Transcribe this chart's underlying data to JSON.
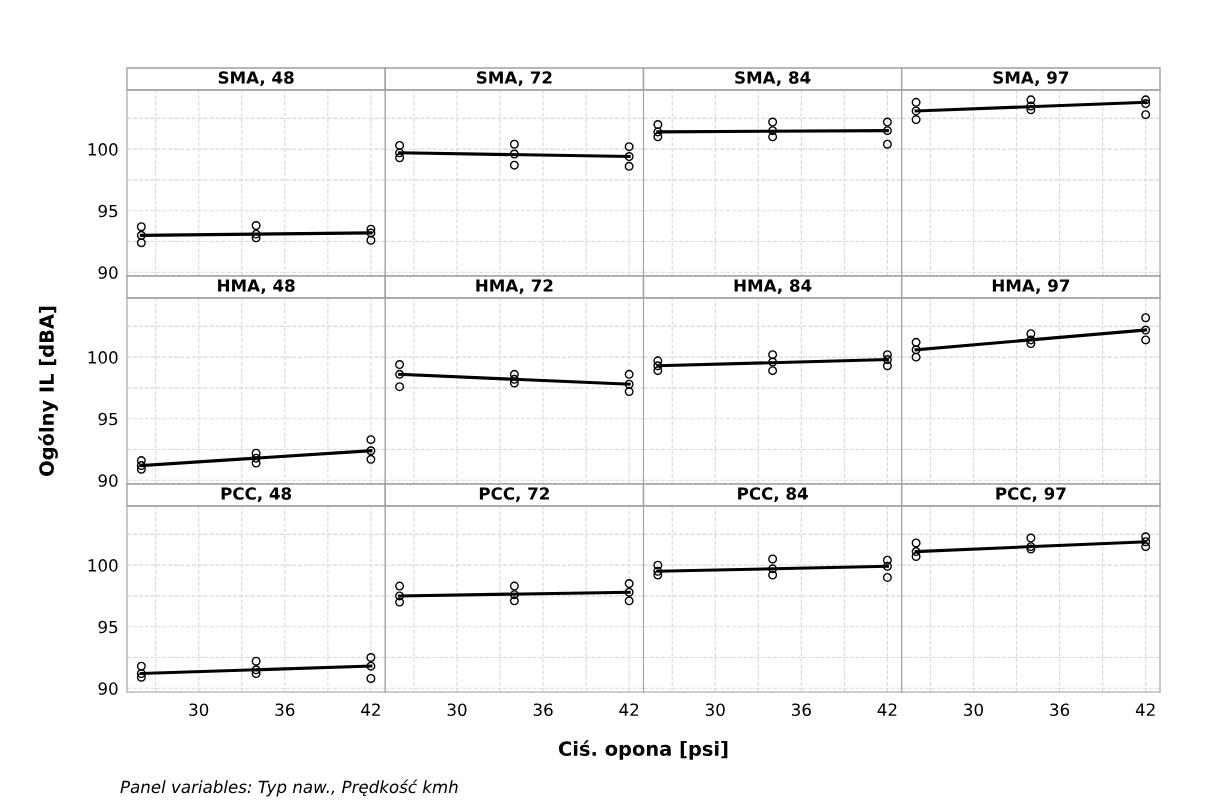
{
  "chart_data": [
    {
      "type": "scatter",
      "title": "SMA, 48",
      "xlim": [
        25,
        43
      ],
      "ylim": [
        89.7,
        104.8
      ],
      "xticks": [
        {
          "value": 27,
          "label": null
        },
        30,
        {
          "value": 33,
          "label": null
        },
        36,
        {
          "value": 39,
          "label": null
        },
        42
      ],
      "yticks": [
        90,
        {
          "value": 92.5,
          "label": null
        },
        95,
        {
          "value": 97.5,
          "label": null
        },
        100,
        {
          "value": 102.5,
          "label": null
        }
      ],
      "grid": true,
      "tick_labels": "y",
      "series": [
        {
          "marker": "circle",
          "color": "#000000",
          "x": [
            26,
            26,
            26,
            34,
            34,
            34,
            42,
            42,
            42
          ],
          "values": [
            92.4,
            93.0,
            93.7,
            92.8,
            93.1,
            93.8,
            92.6,
            93.2,
            93.5
          ]
        },
        {
          "type": "line",
          "color": "#000000",
          "x": [
            26,
            42
          ],
          "values": [
            93.0,
            93.2
          ]
        }
      ]
    },
    {
      "type": "scatter",
      "title": "SMA, 72",
      "xlim": [
        25,
        43
      ],
      "ylim": [
        89.7,
        104.8
      ],
      "xticks": [
        {
          "value": 27,
          "label": null
        },
        30,
        {
          "value": 33,
          "label": null
        },
        36,
        {
          "value": 39,
          "label": null
        },
        42
      ],
      "yticks": [
        90,
        {
          "value": 92.5,
          "label": null
        },
        95,
        {
          "value": 97.5,
          "label": null
        },
        100,
        {
          "value": 102.5,
          "label": null
        }
      ],
      "grid": true,
      "tick_labels": false,
      "series": [
        {
          "marker": "circle",
          "color": "#000000",
          "x": [
            26,
            26,
            26,
            34,
            34,
            34,
            42,
            42,
            42
          ],
          "values": [
            99.3,
            99.7,
            100.3,
            98.7,
            99.6,
            100.4,
            98.6,
            99.4,
            100.2
          ]
        },
        {
          "type": "line",
          "color": "#000000",
          "x": [
            26,
            42
          ],
          "values": [
            99.7,
            99.4
          ]
        }
      ]
    },
    {
      "type": "scatter",
      "title": "SMA, 84",
      "xlim": [
        25,
        43
      ],
      "ylim": [
        89.7,
        104.8
      ],
      "xticks": [
        {
          "value": 27,
          "label": null
        },
        30,
        {
          "value": 33,
          "label": null
        },
        36,
        {
          "value": 39,
          "label": null
        },
        42
      ],
      "yticks": [
        90,
        {
          "value": 92.5,
          "label": null
        },
        95,
        {
          "value": 97.5,
          "label": null
        },
        100,
        {
          "value": 102.5,
          "label": null
        }
      ],
      "grid": true,
      "tick_labels": false,
      "series": [
        {
          "marker": "circle",
          "color": "#000000",
          "x": [
            26,
            26,
            26,
            34,
            34,
            34,
            42,
            42,
            42
          ],
          "values": [
            101.0,
            101.4,
            102.0,
            101.0,
            101.5,
            102.2,
            100.4,
            101.5,
            102.2
          ]
        },
        {
          "type": "line",
          "color": "#000000",
          "x": [
            26,
            42
          ],
          "values": [
            101.4,
            101.5
          ]
        }
      ]
    },
    {
      "type": "scatter",
      "title": "SMA, 97",
      "xlim": [
        25,
        43
      ],
      "ylim": [
        89.7,
        104.8
      ],
      "xticks": [
        {
          "value": 27,
          "label": null
        },
        30,
        {
          "value": 33,
          "label": null
        },
        36,
        {
          "value": 39,
          "label": null
        },
        42
      ],
      "yticks": [
        90,
        {
          "value": 92.5,
          "label": null
        },
        95,
        {
          "value": 97.5,
          "label": null
        },
        100,
        {
          "value": 102.5,
          "label": null
        }
      ],
      "grid": true,
      "tick_labels": false,
      "series": [
        {
          "marker": "circle",
          "color": "#000000",
          "x": [
            26,
            26,
            26,
            34,
            34,
            34,
            42,
            42,
            42
          ],
          "values": [
            102.4,
            103.1,
            103.8,
            103.2,
            103.5,
            104.0,
            102.8,
            103.7,
            104.0
          ]
        },
        {
          "type": "line",
          "color": "#000000",
          "x": [
            26,
            42
          ],
          "values": [
            103.1,
            103.8
          ]
        }
      ]
    },
    {
      "type": "scatter",
      "title": "HMA, 48",
      "ylabel": "Ogólny IL [dBA]",
      "xlim": [
        25,
        43
      ],
      "ylim": [
        89.7,
        104.8
      ],
      "xticks": [
        {
          "value": 27,
          "label": null
        },
        30,
        {
          "value": 33,
          "label": null
        },
        36,
        {
          "value": 39,
          "label": null
        },
        42
      ],
      "yticks": [
        90,
        {
          "value": 92.5,
          "label": null
        },
        95,
        {
          "value": 97.5,
          "label": null
        },
        100,
        {
          "value": 102.5,
          "label": null
        }
      ],
      "grid": true,
      "tick_labels": "y",
      "series": [
        {
          "marker": "circle",
          "color": "#000000",
          "x": [
            26,
            26,
            26,
            34,
            34,
            34,
            42,
            42,
            42
          ],
          "values": [
            90.9,
            91.2,
            91.6,
            91.4,
            91.8,
            92.2,
            91.7,
            92.4,
            93.3
          ]
        },
        {
          "type": "line",
          "color": "#000000",
          "x": [
            26,
            42
          ],
          "values": [
            91.2,
            92.4
          ]
        }
      ]
    },
    {
      "type": "scatter",
      "title": "HMA, 72",
      "xlim": [
        25,
        43
      ],
      "ylim": [
        89.7,
        104.8
      ],
      "xticks": [
        {
          "value": 27,
          "label": null
        },
        30,
        {
          "value": 33,
          "label": null
        },
        36,
        {
          "value": 39,
          "label": null
        },
        42
      ],
      "yticks": [
        90,
        {
          "value": 92.5,
          "label": null
        },
        95,
        {
          "value": 97.5,
          "label": null
        },
        100,
        {
          "value": 102.5,
          "label": null
        }
      ],
      "grid": true,
      "tick_labels": false,
      "series": [
        {
          "marker": "circle",
          "color": "#000000",
          "x": [
            26,
            26,
            26,
            34,
            34,
            34,
            42,
            42,
            42
          ],
          "values": [
            97.6,
            98.6,
            99.4,
            97.9,
            98.2,
            98.6,
            97.2,
            97.8,
            98.6
          ]
        },
        {
          "type": "line",
          "color": "#000000",
          "x": [
            26,
            42
          ],
          "values": [
            98.6,
            97.8
          ]
        }
      ]
    },
    {
      "type": "scatter",
      "title": "HMA, 84",
      "xlim": [
        25,
        43
      ],
      "ylim": [
        89.7,
        104.8
      ],
      "xticks": [
        {
          "value": 27,
          "label": null
        },
        30,
        {
          "value": 33,
          "label": null
        },
        36,
        {
          "value": 39,
          "label": null
        },
        42
      ],
      "yticks": [
        90,
        {
          "value": 92.5,
          "label": null
        },
        95,
        {
          "value": 97.5,
          "label": null
        },
        100,
        {
          "value": 102.5,
          "label": null
        }
      ],
      "grid": true,
      "tick_labels": false,
      "series": [
        {
          "marker": "circle",
          "color": "#000000",
          "x": [
            26,
            26,
            26,
            34,
            34,
            34,
            42,
            42,
            42
          ],
          "values": [
            98.9,
            99.3,
            99.7,
            98.9,
            99.6,
            100.2,
            99.3,
            99.8,
            100.2
          ]
        },
        {
          "type": "line",
          "color": "#000000",
          "x": [
            26,
            42
          ],
          "values": [
            99.3,
            99.8
          ]
        }
      ]
    },
    {
      "type": "scatter",
      "title": "HMA, 97",
      "xlim": [
        25,
        43
      ],
      "ylim": [
        89.7,
        104.8
      ],
      "xticks": [
        {
          "value": 27,
          "label": null
        },
        30,
        {
          "value": 33,
          "label": null
        },
        36,
        {
          "value": 39,
          "label": null
        },
        42
      ],
      "yticks": [
        90,
        {
          "value": 92.5,
          "label": null
        },
        95,
        {
          "value": 97.5,
          "label": null
        },
        100,
        {
          "value": 102.5,
          "label": null
        }
      ],
      "grid": true,
      "tick_labels": false,
      "series": [
        {
          "marker": "circle",
          "color": "#000000",
          "x": [
            26,
            26,
            26,
            34,
            34,
            34,
            42,
            42,
            42
          ],
          "values": [
            100.0,
            100.6,
            101.2,
            101.1,
            101.4,
            101.9,
            101.4,
            102.2,
            103.2
          ]
        },
        {
          "type": "line",
          "color": "#000000",
          "x": [
            26,
            42
          ],
          "values": [
            100.6,
            102.2
          ]
        }
      ]
    },
    {
      "type": "scatter",
      "title": "PCC, 48",
      "annotations": [
        "Panel variables: Typ naw., Prędkość kmh"
      ],
      "xlim": [
        25,
        43
      ],
      "ylim": [
        89.7,
        104.8
      ],
      "xticks": [
        {
          "value": 27,
          "label": null
        },
        30,
        {
          "value": 33,
          "label": null
        },
        36,
        {
          "value": 39,
          "label": null
        },
        42
      ],
      "yticks": [
        90,
        {
          "value": 92.5,
          "label": null
        },
        95,
        {
          "value": 97.5,
          "label": null
        },
        100,
        {
          "value": 102.5,
          "label": null
        }
      ],
      "grid": true,
      "series": [
        {
          "marker": "circle",
          "color": "#000000",
          "x": [
            26,
            26,
            26,
            34,
            34,
            34,
            42,
            42,
            42
          ],
          "values": [
            90.9,
            91.2,
            91.8,
            91.2,
            91.5,
            92.2,
            90.8,
            91.8,
            92.5
          ]
        },
        {
          "type": "line",
          "color": "#000000",
          "x": [
            26,
            42
          ],
          "values": [
            91.2,
            91.8
          ]
        }
      ]
    },
    {
      "type": "scatter",
      "title": "PCC, 72",
      "xlabel": "Ciś. opona [psi]",
      "xlim": [
        25,
        43
      ],
      "ylim": [
        89.7,
        104.8
      ],
      "xticks": [
        {
          "value": 27,
          "label": null
        },
        30,
        {
          "value": 33,
          "label": null
        },
        36,
        {
          "value": 39,
          "label": null
        },
        42
      ],
      "yticks": [
        90,
        {
          "value": 92.5,
          "label": null
        },
        95,
        {
          "value": 97.5,
          "label": null
        },
        100,
        {
          "value": 102.5,
          "label": null
        }
      ],
      "grid": true,
      "tick_labels": "x",
      "series": [
        {
          "marker": "circle",
          "color": "#000000",
          "x": [
            26,
            26,
            26,
            34,
            34,
            34,
            42,
            42,
            42
          ],
          "values": [
            97.0,
            97.5,
            98.3,
            97.1,
            97.6,
            98.3,
            97.1,
            97.8,
            98.5
          ]
        },
        {
          "type": "line",
          "color": "#000000",
          "x": [
            26,
            42
          ],
          "values": [
            97.5,
            97.8
          ]
        }
      ]
    },
    {
      "type": "scatter",
      "title": "PCC, 84",
      "xlim": [
        25,
        43
      ],
      "ylim": [
        89.7,
        104.8
      ],
      "xticks": [
        {
          "value": 27,
          "label": null
        },
        30,
        {
          "value": 33,
          "label": null
        },
        36,
        {
          "value": 39,
          "label": null
        },
        42
      ],
      "yticks": [
        90,
        {
          "value": 92.5,
          "label": null
        },
        95,
        {
          "value": 97.5,
          "label": null
        },
        100,
        {
          "value": 102.5,
          "label": null
        }
      ],
      "grid": true,
      "tick_labels": "x",
      "series": [
        {
          "marker": "circle",
          "color": "#000000",
          "x": [
            26,
            26,
            26,
            34,
            34,
            34,
            42,
            42,
            42
          ],
          "values": [
            99.2,
            99.5,
            100.0,
            99.2,
            99.7,
            100.5,
            99.0,
            99.9,
            100.4
          ]
        },
        {
          "type": "line",
          "color": "#000000",
          "x": [
            26,
            42
          ],
          "values": [
            99.5,
            99.9
          ]
        }
      ]
    },
    {
      "type": "scatter",
      "title": "PCC, 97",
      "xlim": [
        25,
        43
      ],
      "ylim": [
        89.7,
        104.8
      ],
      "xticks": [
        {
          "value": 27,
          "label": null
        },
        30,
        {
          "value": 33,
          "label": null
        },
        36,
        {
          "value": 39,
          "label": null
        },
        42
      ],
      "yticks": [
        90,
        {
          "value": 92.5,
          "label": null
        },
        95,
        {
          "value": 97.5,
          "label": null
        },
        100,
        {
          "value": 102.5,
          "label": null
        }
      ],
      "grid": true,
      "tick_labels": "x",
      "series": [
        {
          "marker": "circle",
          "color": "#000000",
          "x": [
            26,
            26,
            26,
            34,
            34,
            34,
            42,
            42,
            42
          ],
          "values": [
            100.7,
            101.1,
            101.8,
            101.3,
            101.5,
            102.2,
            101.5,
            101.9,
            102.3
          ]
        },
        {
          "type": "line",
          "color": "#000000",
          "x": [
            26,
            42
          ],
          "values": [
            101.1,
            101.9
          ]
        }
      ]
    }
  ]
}
